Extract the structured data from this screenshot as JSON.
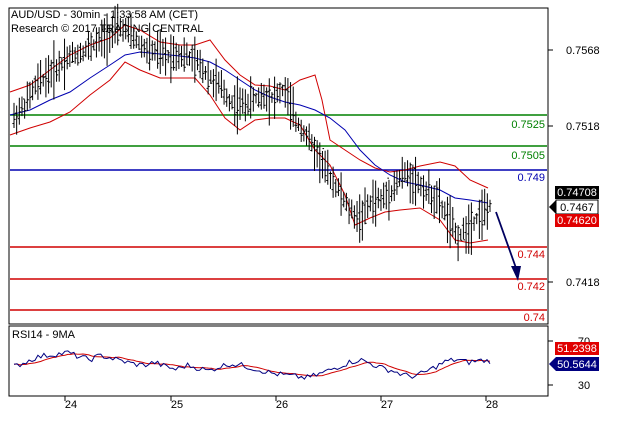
{
  "header": {
    "line1": "AUD/USD - 30min - 1:33:58 AM (CET)",
    "line2": "Research © 2017 TRADING CENTRAL"
  },
  "price_axis": {
    "ticks": [
      "0.7568",
      "0.7518",
      "0.7418"
    ]
  },
  "levels": [
    {
      "value": 0.7525,
      "label": "0.7525",
      "color": "#008000"
    },
    {
      "value": 0.7505,
      "label": "0.7505",
      "color": "#008000"
    },
    {
      "value": 0.749,
      "label": "0.749",
      "color": "#0000b0"
    },
    {
      "value": 0.744,
      "label": "0.744",
      "color": "#d00000"
    },
    {
      "value": 0.742,
      "label": "0.742",
      "color": "#d00000"
    },
    {
      "value": 0.74,
      "label": "0.74",
      "color": "#d00000"
    }
  ],
  "price_tags": [
    {
      "label": "0.74708",
      "bg": "#000000",
      "fg": "#ffffff"
    },
    {
      "label": "0.7467",
      "bg": "#ffffff",
      "fg": "#000000"
    },
    {
      "label": "0.74620",
      "bg": "#e00000",
      "fg": "#ffffff"
    }
  ],
  "rsi": {
    "title": "RSI14 - 9MA",
    "ticks": [
      "70",
      "30"
    ],
    "tags": [
      {
        "label": "51.2398",
        "bg": "#e00000",
        "fg": "#ffffff"
      },
      {
        "label": "50.5644",
        "bg": "#000080",
        "fg": "#ffffff"
      }
    ]
  },
  "x_axis": {
    "labels": [
      "24",
      "25",
      "26",
      "27",
      "28"
    ]
  },
  "chart_data": {
    "type": "line",
    "title": "AUD/USD - 30min",
    "ylim": [
      0.7395,
      0.759
    ],
    "price_series_approx": [
      0.7522,
      0.753,
      0.7542,
      0.7548,
      0.7553,
      0.756,
      0.7562,
      0.7566,
      0.757,
      0.7575,
      0.7578,
      0.7572,
      0.7565,
      0.7563,
      0.756,
      0.7562,
      0.756,
      0.7556,
      0.7548,
      0.7542,
      0.7532,
      0.753,
      0.7533,
      0.7536,
      0.7535,
      0.754,
      0.7521,
      0.7512,
      0.75,
      0.7488,
      0.7478,
      0.7465,
      0.746,
      0.747,
      0.7472,
      0.7478,
      0.7488,
      0.7484,
      0.7478,
      0.7472,
      0.7462,
      0.7448,
      0.7455,
      0.7462,
      0.7467
    ],
    "rsi_series_approx": [
      42,
      48,
      55,
      58,
      60,
      62,
      56,
      52,
      58,
      54,
      50,
      46,
      44,
      48,
      42,
      38,
      44,
      40,
      36,
      42,
      46,
      44,
      40,
      36,
      32,
      30,
      28,
      26,
      30,
      36,
      42,
      48,
      52,
      46,
      40,
      36,
      30,
      28,
      34,
      42,
      50,
      52,
      48,
      51,
      50
    ],
    "rsi_ylim": [
      0,
      100
    ],
    "forecast_arrow": {
      "from": 0.746,
      "to": 0.742
    }
  }
}
